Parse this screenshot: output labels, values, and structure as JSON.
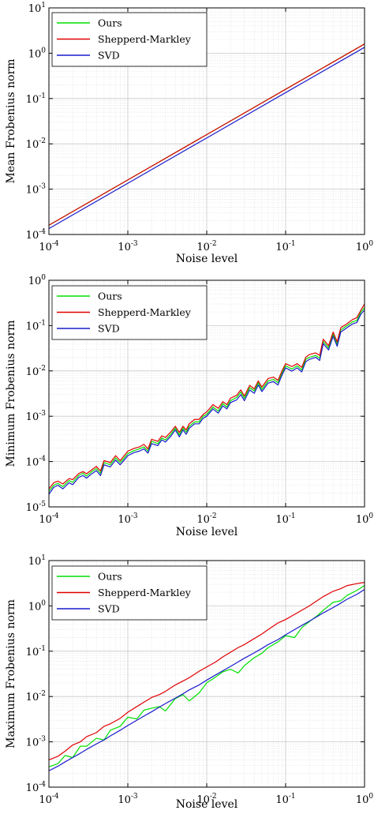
{
  "colors": {
    "Ours": "#00e000",
    "Shepperd-Markley": "#e00000",
    "SVD": "#1a1acc"
  },
  "chart_data": [
    {
      "type": "line",
      "xscale": "log",
      "yscale": "log",
      "xlabel": "Noise level",
      "ylabel": "Mean Frobenius norm",
      "xlim": [
        0.0001,
        1
      ],
      "ylim": [
        0.0001,
        10
      ],
      "grid": true,
      "legend": "top-left",
      "x_ticks": [
        "10-4",
        "10-3",
        "10-2",
        "10-1",
        "100"
      ],
      "y_ticks": [
        "10-4",
        "10-3",
        "10-2",
        "10-1",
        "100",
        "101"
      ],
      "series": [
        {
          "name": "Ours",
          "x": [
            0.0001,
            0.001,
            0.01,
            0.1,
            1
          ],
          "y": [
            0.00016,
            0.0016,
            0.016,
            0.16,
            1.6
          ]
        },
        {
          "name": "Shepperd-Markley",
          "x": [
            0.0001,
            0.001,
            0.01,
            0.1,
            1
          ],
          "y": [
            0.00016,
            0.0016,
            0.016,
            0.16,
            1.6
          ]
        },
        {
          "name": "SVD",
          "x": [
            0.0001,
            0.001,
            0.01,
            0.1,
            1
          ],
          "y": [
            0.000135,
            0.00135,
            0.0135,
            0.135,
            1.35
          ]
        }
      ]
    },
    {
      "type": "line",
      "xscale": "log",
      "yscale": "log",
      "xlabel": "Noise level",
      "ylabel": "Minimum Frobenius norm",
      "xlim": [
        0.0001,
        1
      ],
      "ylim": [
        1e-05,
        1
      ],
      "grid": true,
      "legend": "top-left",
      "x_ticks": [
        "10-4",
        "10-3",
        "10-2",
        "10-1",
        "100"
      ],
      "y_ticks": [
        "10-5",
        "10-4",
        "10-3",
        "10-2",
        "10-1",
        "100"
      ],
      "series": [
        {
          "name": "Ours",
          "x": [
            0.0001,
            0.000115,
            0.00013,
            0.00015,
            0.00018,
            0.0002,
            0.00024,
            0.00027,
            0.0003,
            0.00035,
            0.0004,
            0.00045,
            0.0005,
            0.0006,
            0.0007,
            0.0008,
            0.0009,
            0.001,
            0.0012,
            0.0014,
            0.0016,
            0.0018,
            0.002,
            0.0024,
            0.0027,
            0.003,
            0.0035,
            0.004,
            0.0045,
            0.005,
            0.0055,
            0.006,
            0.007,
            0.008,
            0.009,
            0.01,
            0.012,
            0.014,
            0.016,
            0.018,
            0.02,
            0.024,
            0.027,
            0.03,
            0.035,
            0.04,
            0.045,
            0.05,
            0.06,
            0.07,
            0.08,
            0.09,
            0.1,
            0.12,
            0.14,
            0.16,
            0.18,
            0.2,
            0.24,
            0.27,
            0.3,
            0.35,
            0.4,
            0.45,
            0.5,
            0.6,
            0.7,
            0.8,
            0.9,
            1.0
          ],
          "y": [
            2.2e-05,
            3e-05,
            3.3e-05,
            2.8e-05,
            3.8e-05,
            3.5e-05,
            5e-05,
            5.5e-05,
            4.8e-05,
            6e-05,
            7e-05,
            5.5e-05,
            9.5e-05,
            8.5e-05,
            0.00012,
            9.5e-05,
            0.00012,
            0.00015,
            0.000175,
            0.00019,
            0.00021,
            0.00017,
            0.00028,
            0.00025,
            0.00033,
            0.0003,
            0.0004,
            0.00055,
            0.00039,
            0.00055,
            0.00045,
            0.0006,
            0.00075,
            0.00075,
            0.001,
            0.0011,
            0.0016,
            0.0013,
            0.0019,
            0.0016,
            0.0022,
            0.0026,
            0.0034,
            0.0025,
            0.0043,
            0.0036,
            0.0055,
            0.0039,
            0.006,
            0.0065,
            0.0055,
            0.009,
            0.013,
            0.011,
            0.013,
            0.0105,
            0.018,
            0.02,
            0.022,
            0.019,
            0.045,
            0.032,
            0.065,
            0.039,
            0.08,
            0.1,
            0.12,
            0.13,
            0.2,
            0.25
          ]
        },
        {
          "name": "Shepperd-Markley",
          "x": [
            0.0001,
            0.000115,
            0.00013,
            0.00015,
            0.00018,
            0.0002,
            0.00024,
            0.00027,
            0.0003,
            0.00035,
            0.0004,
            0.00045,
            0.0005,
            0.0006,
            0.0007,
            0.0008,
            0.0009,
            0.001,
            0.0012,
            0.0014,
            0.0016,
            0.0018,
            0.002,
            0.0024,
            0.0027,
            0.003,
            0.0035,
            0.004,
            0.0045,
            0.005,
            0.0055,
            0.006,
            0.007,
            0.008,
            0.009,
            0.01,
            0.012,
            0.014,
            0.016,
            0.018,
            0.02,
            0.024,
            0.027,
            0.03,
            0.035,
            0.04,
            0.045,
            0.05,
            0.06,
            0.07,
            0.08,
            0.09,
            0.1,
            0.12,
            0.14,
            0.16,
            0.18,
            0.2,
            0.24,
            0.27,
            0.3,
            0.35,
            0.4,
            0.45,
            0.5,
            0.6,
            0.7,
            0.8,
            0.9,
            1.0
          ],
          "y": [
            2.5e-05,
            3.4e-05,
            3.7e-05,
            3.2e-05,
            4.2e-05,
            4e-05,
            5.5e-05,
            6e-05,
            5.4e-05,
            6.6e-05,
            7.8e-05,
            6.2e-05,
            0.000105,
            9.5e-05,
            0.000135,
            0.000105,
            0.000135,
            0.00017,
            0.000195,
            0.00021,
            0.00024,
            0.00019,
            0.00031,
            0.00028,
            0.00037,
            0.00034,
            0.00045,
            0.0006,
            0.00044,
            0.0006,
            0.0005,
            0.00068,
            0.00085,
            0.00085,
            0.0011,
            0.00125,
            0.0018,
            0.0015,
            0.0021,
            0.0018,
            0.0025,
            0.0029,
            0.0038,
            0.0028,
            0.0048,
            0.004,
            0.006,
            0.0044,
            0.0068,
            0.0073,
            0.0062,
            0.01,
            0.0145,
            0.0125,
            0.0145,
            0.012,
            0.02,
            0.023,
            0.025,
            0.022,
            0.05,
            0.036,
            0.072,
            0.044,
            0.09,
            0.11,
            0.135,
            0.15,
            0.22,
            0.3
          ]
        },
        {
          "name": "SVD",
          "x": [
            0.0001,
            0.000115,
            0.00013,
            0.00015,
            0.00018,
            0.0002,
            0.00024,
            0.00027,
            0.0003,
            0.00035,
            0.0004,
            0.00045,
            0.0005,
            0.0006,
            0.0007,
            0.0008,
            0.0009,
            0.001,
            0.0012,
            0.0014,
            0.0016,
            0.0018,
            0.002,
            0.0024,
            0.0027,
            0.003,
            0.0035,
            0.004,
            0.0045,
            0.005,
            0.0055,
            0.006,
            0.007,
            0.008,
            0.009,
            0.01,
            0.012,
            0.014,
            0.016,
            0.018,
            0.02,
            0.024,
            0.027,
            0.03,
            0.035,
            0.04,
            0.045,
            0.05,
            0.06,
            0.07,
            0.08,
            0.09,
            0.1,
            0.12,
            0.14,
            0.16,
            0.18,
            0.2,
            0.24,
            0.27,
            0.3,
            0.35,
            0.4,
            0.45,
            0.5,
            0.6,
            0.7,
            0.8,
            0.9,
            1.0
          ],
          "y": [
            1.9e-05,
            2.7e-05,
            3e-05,
            2.5e-05,
            3.4e-05,
            3.1e-05,
            4.5e-05,
            4.9e-05,
            4.3e-05,
            5.4e-05,
            6.3e-05,
            4.9e-05,
            8.5e-05,
            7.6e-05,
            0.000108,
            8.5e-05,
            0.000108,
            0.000135,
            0.000158,
            0.00017,
            0.00019,
            0.000153,
            0.00025,
            0.000225,
            0.0003,
            0.00027,
            0.00036,
            0.0005,
            0.00035,
            0.0005,
            0.0004,
            0.00054,
            0.00068,
            0.00068,
            0.0009,
            0.001,
            0.00145,
            0.00117,
            0.0017,
            0.00145,
            0.002,
            0.0023,
            0.003,
            0.0022,
            0.0038,
            0.0032,
            0.0049,
            0.0035,
            0.0054,
            0.0058,
            0.0049,
            0.0081,
            0.0117,
            0.0099,
            0.0117,
            0.0095,
            0.016,
            0.018,
            0.02,
            0.017,
            0.04,
            0.029,
            0.058,
            0.035,
            0.072,
            0.09,
            0.108,
            0.117,
            0.18,
            0.22
          ]
        }
      ]
    },
    {
      "type": "line",
      "xscale": "log",
      "yscale": "log",
      "xlabel": "Noise level",
      "ylabel": "Maximum Frobenius norm",
      "xlim": [
        0.0001,
        1
      ],
      "ylim": [
        0.0001,
        10
      ],
      "grid": true,
      "legend": "top-left",
      "x_ticks": [
        "10-4",
        "10-3",
        "10-2",
        "10-1",
        "100"
      ],
      "y_ticks": [
        "10-4",
        "10-3",
        "10-2",
        "10-1",
        "100",
        "101"
      ],
      "series": [
        {
          "name": "Ours",
          "x": [
            0.0001,
            0.00013,
            0.00016,
            0.0002,
            0.00025,
            0.0003,
            0.0004,
            0.0005,
            0.0006,
            0.0008,
            0.001,
            0.0013,
            0.0016,
            0.002,
            0.0025,
            0.003,
            0.004,
            0.005,
            0.006,
            0.008,
            0.01,
            0.013,
            0.016,
            0.02,
            0.025,
            0.03,
            0.04,
            0.05,
            0.06,
            0.08,
            0.1,
            0.13,
            0.16,
            0.2,
            0.25,
            0.3,
            0.4,
            0.5,
            0.6,
            0.8,
            1.0
          ],
          "y": [
            0.00028,
            0.00033,
            0.0005,
            0.00045,
            0.0008,
            0.0008,
            0.0012,
            0.0011,
            0.0018,
            0.0022,
            0.0035,
            0.0032,
            0.005,
            0.0055,
            0.006,
            0.0048,
            0.009,
            0.011,
            0.008,
            0.012,
            0.02,
            0.027,
            0.035,
            0.04,
            0.033,
            0.048,
            0.072,
            0.09,
            0.12,
            0.16,
            0.22,
            0.2,
            0.33,
            0.45,
            0.6,
            0.8,
            1.2,
            1.3,
            1.7,
            2.2,
            2.8
          ]
        },
        {
          "name": "Shepperd-Markley",
          "x": [
            0.0001,
            0.00013,
            0.00016,
            0.0002,
            0.00025,
            0.0003,
            0.0004,
            0.0005,
            0.0006,
            0.0008,
            0.001,
            0.0013,
            0.0016,
            0.002,
            0.0025,
            0.003,
            0.004,
            0.005,
            0.006,
            0.008,
            0.01,
            0.013,
            0.016,
            0.02,
            0.025,
            0.03,
            0.04,
            0.05,
            0.06,
            0.08,
            0.1,
            0.13,
            0.16,
            0.2,
            0.25,
            0.3,
            0.4,
            0.5,
            0.6,
            0.8,
            1.0
          ],
          "y": [
            0.0004,
            0.00048,
            0.00062,
            0.00085,
            0.001,
            0.0013,
            0.0016,
            0.0022,
            0.0025,
            0.0033,
            0.0045,
            0.006,
            0.0075,
            0.0095,
            0.011,
            0.013,
            0.018,
            0.022,
            0.026,
            0.036,
            0.045,
            0.058,
            0.075,
            0.095,
            0.12,
            0.14,
            0.19,
            0.24,
            0.3,
            0.42,
            0.5,
            0.65,
            0.8,
            1.0,
            1.3,
            1.6,
            2.1,
            2.4,
            2.8,
            3.1,
            3.3
          ]
        },
        {
          "name": "SVD",
          "x": [
            0.0001,
            0.00013,
            0.00016,
            0.0002,
            0.00025,
            0.0003,
            0.0004,
            0.0005,
            0.0006,
            0.0008,
            0.001,
            0.0013,
            0.0016,
            0.002,
            0.0025,
            0.003,
            0.004,
            0.005,
            0.006,
            0.008,
            0.01,
            0.013,
            0.016,
            0.02,
            0.025,
            0.03,
            0.04,
            0.05,
            0.06,
            0.08,
            0.1,
            0.13,
            0.16,
            0.2,
            0.25,
            0.3,
            0.4,
            0.5,
            0.6,
            0.8,
            1.0
          ],
          "y": [
            0.00023,
            0.00029,
            0.00036,
            0.00045,
            0.00056,
            0.00068,
            0.0009,
            0.0011,
            0.00135,
            0.0018,
            0.0023,
            0.003,
            0.0037,
            0.0046,
            0.0058,
            0.007,
            0.0092,
            0.0115,
            0.014,
            0.018,
            0.023,
            0.03,
            0.037,
            0.046,
            0.058,
            0.07,
            0.092,
            0.115,
            0.14,
            0.18,
            0.23,
            0.3,
            0.37,
            0.46,
            0.58,
            0.7,
            0.92,
            1.15,
            1.4,
            1.8,
            2.3
          ]
        }
      ]
    }
  ]
}
